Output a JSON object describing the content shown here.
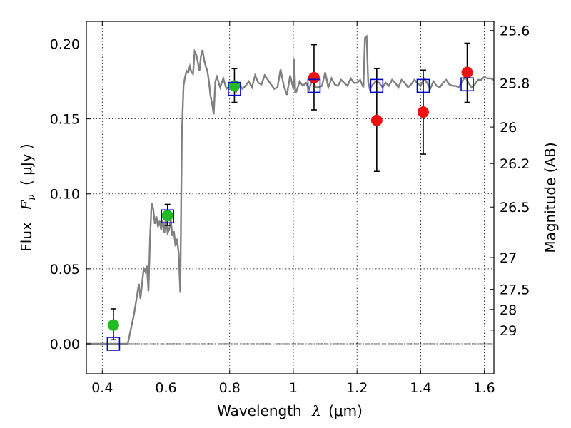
{
  "chart_data": {
    "type": "scatter",
    "xlabel": "Wavelength",
    "xlabel_symbol": "λ",
    "xlabel_unit": "(μm)",
    "ylabel": "Flux",
    "ylabel_symbol": "F",
    "ylabel_subscript": "ν",
    "ylabel_unit": "( μJy )",
    "y2label": "Magnitude (AB)",
    "xlim": [
      0.35,
      1.63
    ],
    "ylim": [
      -0.02,
      0.215
    ],
    "grid": true,
    "x_ticks": [
      {
        "value": 0.4,
        "label": "0.4"
      },
      {
        "value": 0.6,
        "label": "0.6"
      },
      {
        "value": 0.8,
        "label": "0.8"
      },
      {
        "value": 1.0,
        "label": "1"
      },
      {
        "value": 1.2,
        "label": "1.2"
      },
      {
        "value": 1.4,
        "label": "1.4"
      },
      {
        "value": 1.6,
        "label": "1.6"
      }
    ],
    "y_ticks": [
      {
        "value": 0.0,
        "label": "0.00"
      },
      {
        "value": 0.05,
        "label": "0.05"
      },
      {
        "value": 0.1,
        "label": "0.10"
      },
      {
        "value": 0.15,
        "label": "0.15"
      },
      {
        "value": 0.2,
        "label": "0.20"
      }
    ],
    "y2_ticks": [
      {
        "magnitude": 25.6,
        "label": "25.6"
      },
      {
        "magnitude": 25.8,
        "label": "25.8"
      },
      {
        "magnitude": 26.0,
        "label": "26"
      },
      {
        "magnitude": 26.2,
        "label": "26.2"
      },
      {
        "magnitude": 26.5,
        "label": "26.5"
      },
      {
        "magnitude": 27.0,
        "label": "27"
      },
      {
        "magnitude": 27.5,
        "label": "27.5"
      },
      {
        "magnitude": 28.0,
        "label": "28"
      },
      {
        "magnitude": 29.0,
        "label": "29"
      }
    ],
    "colors": {
      "model": "#808080",
      "green": "#22bb22",
      "red": "#ee1111",
      "square": "#0000cc",
      "error": "#000000",
      "zero_line": "#555555"
    },
    "model_spectrum": {
      "x": [
        0.35,
        0.4,
        0.45,
        0.48,
        0.5,
        0.515,
        0.52,
        0.53,
        0.535,
        0.54,
        0.545,
        0.55,
        0.555,
        0.56,
        0.565,
        0.57,
        0.575,
        0.58,
        0.585,
        0.59,
        0.595,
        0.6,
        0.605,
        0.61,
        0.615,
        0.62,
        0.625,
        0.63,
        0.635,
        0.64,
        0.645,
        0.65,
        0.655,
        0.66,
        0.665,
        0.67,
        0.675,
        0.68,
        0.685,
        0.69,
        0.695,
        0.7,
        0.705,
        0.71,
        0.715,
        0.72,
        0.725,
        0.73,
        0.735,
        0.74,
        0.745,
        0.75,
        0.755,
        0.76,
        0.77,
        0.78,
        0.79,
        0.8,
        0.81,
        0.82,
        0.83,
        0.84,
        0.85,
        0.86,
        0.87,
        0.88,
        0.89,
        0.9,
        0.91,
        0.92,
        0.93,
        0.94,
        0.95,
        0.96,
        0.97,
        0.98,
        0.99,
        1.0,
        1.003,
        1.006,
        1.009,
        1.02,
        1.03,
        1.04,
        1.05,
        1.06,
        1.07,
        1.08,
        1.09,
        1.1,
        1.11,
        1.12,
        1.13,
        1.14,
        1.15,
        1.16,
        1.17,
        1.18,
        1.19,
        1.2,
        1.21,
        1.22,
        1.225,
        1.23,
        1.235,
        1.24,
        1.25,
        1.26,
        1.27,
        1.28,
        1.29,
        1.3,
        1.31,
        1.32,
        1.33,
        1.34,
        1.35,
        1.36,
        1.37,
        1.38,
        1.39,
        1.4,
        1.41,
        1.42,
        1.43,
        1.44,
        1.45,
        1.46,
        1.47,
        1.48,
        1.49,
        1.5,
        1.51,
        1.52,
        1.53,
        1.54,
        1.55,
        1.56,
        1.57,
        1.58,
        1.59,
        1.6,
        1.61,
        1.62,
        1.63
      ],
      "y": [
        0.0,
        0.0,
        0.0,
        0.0,
        0.02,
        0.04,
        0.03,
        0.05,
        0.048,
        0.052,
        0.035,
        0.07,
        0.094,
        0.09,
        0.08,
        0.085,
        0.078,
        0.082,
        0.076,
        0.082,
        0.074,
        0.085,
        0.074,
        0.076,
        0.083,
        0.072,
        0.075,
        0.065,
        0.07,
        0.06,
        0.034,
        0.14,
        0.172,
        0.178,
        0.182,
        0.181,
        0.185,
        0.181,
        0.18,
        0.195,
        0.193,
        0.188,
        0.182,
        0.192,
        0.196,
        0.189,
        0.185,
        0.182,
        0.175,
        0.165,
        0.16,
        0.153,
        0.175,
        0.178,
        0.171,
        0.177,
        0.17,
        0.172,
        0.174,
        0.168,
        0.173,
        0.17,
        0.172,
        0.175,
        0.171,
        0.179,
        0.174,
        0.173,
        0.179,
        0.176,
        0.173,
        0.17,
        0.171,
        0.183,
        0.172,
        0.166,
        0.179,
        0.17,
        0.19,
        0.168,
        0.168,
        0.175,
        0.172,
        0.174,
        0.17,
        0.177,
        0.171,
        0.171,
        0.172,
        0.181,
        0.171,
        0.177,
        0.173,
        0.172,
        0.176,
        0.174,
        0.172,
        0.177,
        0.174,
        0.174,
        0.176,
        0.171,
        0.204,
        0.205,
        0.175,
        0.17,
        0.173,
        0.175,
        0.174,
        0.171,
        0.174,
        0.172,
        0.176,
        0.174,
        0.171,
        0.176,
        0.174,
        0.171,
        0.173,
        0.176,
        0.174,
        0.172,
        0.177,
        0.174,
        0.17,
        0.175,
        0.172,
        0.171,
        0.174,
        0.176,
        0.173,
        0.172,
        0.172,
        0.171,
        0.175,
        0.178,
        0.174,
        0.171,
        0.173,
        0.176,
        0.176,
        0.178,
        0.177,
        0.177,
        0.176
      ]
    },
    "green_points": [
      {
        "x": 0.435,
        "y": 0.0125,
        "yerr_low": 0.0098,
        "yerr_high": 0.0108
      },
      {
        "x": 0.605,
        "y": 0.0855,
        "yerr_low": 0.0065,
        "yerr_high": 0.0075
      },
      {
        "x": 0.815,
        "y": 0.172,
        "yerr_low": 0.011,
        "yerr_high": 0.0115
      }
    ],
    "red_points": [
      {
        "x": 1.065,
        "y": 0.1775,
        "yerr_low": 0.0215,
        "yerr_high": 0.022
      },
      {
        "x": 1.262,
        "y": 0.149,
        "yerr_low": 0.034,
        "yerr_high": 0.0345
      },
      {
        "x": 1.408,
        "y": 0.1545,
        "yerr_low": 0.028,
        "yerr_high": 0.028
      },
      {
        "x": 1.546,
        "y": 0.181,
        "yerr_low": 0.02,
        "yerr_high": 0.0195
      }
    ],
    "model_squares": [
      {
        "x": 0.435,
        "y": 0.0
      },
      {
        "x": 0.605,
        "y": 0.085
      },
      {
        "x": 0.815,
        "y": 0.17
      },
      {
        "x": 1.065,
        "y": 0.172
      },
      {
        "x": 1.262,
        "y": 0.172
      },
      {
        "x": 1.408,
        "y": 0.172
      },
      {
        "x": 1.546,
        "y": 0.173
      }
    ]
  }
}
